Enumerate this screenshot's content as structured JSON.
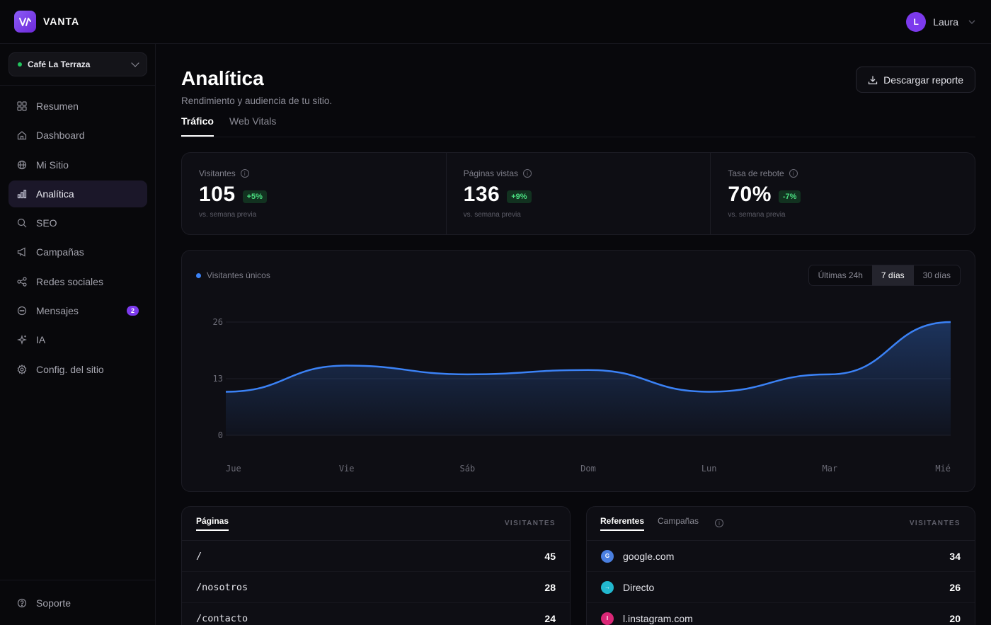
{
  "app": {
    "brand": "VANTA"
  },
  "user": {
    "name": "Laura",
    "initial": "L"
  },
  "site": {
    "name": "Café La Terraza"
  },
  "sidebar": {
    "items": [
      {
        "label": "Resumen",
        "icon": "grid-icon"
      },
      {
        "label": "Dashboard",
        "icon": "home-icon"
      },
      {
        "label": "Mi Sitio",
        "icon": "globe-icon"
      },
      {
        "label": "Analítica",
        "icon": "bar-chart-icon",
        "active": true
      },
      {
        "label": "SEO",
        "icon": "search-icon"
      },
      {
        "label": "Campañas",
        "icon": "megaphone-icon"
      },
      {
        "label": "Redes sociales",
        "icon": "share-icon"
      },
      {
        "label": "Mensajes",
        "icon": "message-icon",
        "badge": "2"
      },
      {
        "label": "IA",
        "icon": "sparkle-icon"
      },
      {
        "label": "Config. del sitio",
        "icon": "gear-icon"
      }
    ],
    "support": "Soporte"
  },
  "header": {
    "title": "Analítica",
    "subtitle": "Rendimiento y audiencia de tu sitio.",
    "download": "Descargar reporte"
  },
  "tabs": [
    "Tráfico",
    "Web Vitals"
  ],
  "stats": [
    {
      "label": "Visitantes",
      "value": "105",
      "delta": "+5%",
      "foot": "vs. semana previa"
    },
    {
      "label": "Páginas vistas",
      "value": "136",
      "delta": "+9%",
      "foot": "vs. semana previa"
    },
    {
      "label": "Tasa de rebote",
      "value": "70%",
      "delta": "-7%",
      "foot": "vs. semana previa"
    }
  ],
  "chart_controls": {
    "legend": "Visitantes únicos",
    "ranges": [
      "Últimas 24h",
      "7 días",
      "30 días"
    ],
    "active_range": "7 días"
  },
  "chart_data": {
    "type": "area",
    "categories": [
      "Jue",
      "Vie",
      "Sáb",
      "Dom",
      "Lun",
      "Mar",
      "Mié"
    ],
    "series": [
      {
        "name": "Visitantes únicos",
        "values": [
          10,
          16,
          14,
          15,
          10,
          14,
          26
        ]
      }
    ],
    "yticks": [
      0,
      13,
      26
    ],
    "ylim": [
      0,
      26
    ],
    "grid": true,
    "color": "#3b82f6"
  },
  "pages_table": {
    "tab": "Páginas",
    "column": "VISITANTES",
    "rows": [
      {
        "path": "/",
        "value": "45"
      },
      {
        "path": "/nosotros",
        "value": "28"
      },
      {
        "path": "/contacto",
        "value": "24"
      }
    ]
  },
  "referrers_table": {
    "tabs": [
      "Referentes",
      "Campañas"
    ],
    "column": "VISITANTES",
    "rows": [
      {
        "source": "google.com",
        "value": "34",
        "icon_letter": "G",
        "color": "#4a7fe0"
      },
      {
        "source": "Directo",
        "value": "26",
        "icon_letter": "→",
        "color": "#22b8cf"
      },
      {
        "source": "l.instagram.com",
        "value": "20",
        "icon_letter": "I",
        "color": "#db2777"
      }
    ]
  }
}
